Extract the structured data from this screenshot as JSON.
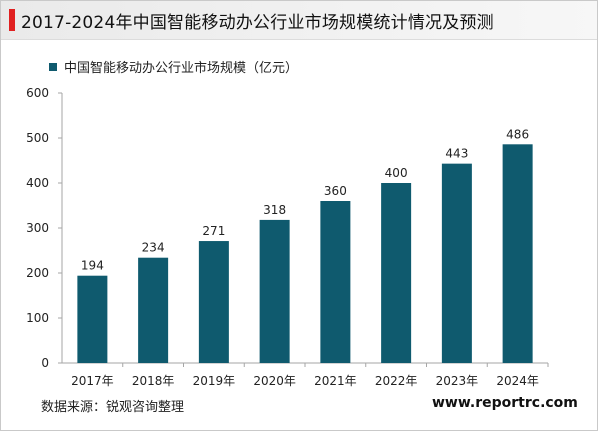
{
  "header": {
    "title": "2017-2024年中国智能移动办公行业市场规模统计情况及预测"
  },
  "footer": {
    "source": "数据来源：锐观咨询整理",
    "website": "www.reportrc.com"
  },
  "colors": {
    "accent": "#e02020",
    "bar": "#0f5a6e"
  },
  "chart_data": {
    "type": "bar",
    "title": "2017-2024年中国智能移动办公行业市场规模统计情况及预测",
    "categories": [
      "2017年",
      "2018年",
      "2019年",
      "2020年",
      "2021年",
      "2022年",
      "2023年",
      "2024年"
    ],
    "series": [
      {
        "name": "中国智能移动办公行业市场规模（亿元）",
        "values": [
          194,
          234,
          271,
          318,
          360,
          400,
          443,
          486
        ]
      }
    ],
    "yticks": [
      "0",
      "100",
      "200",
      "300",
      "400",
      "500",
      "600"
    ],
    "ylim": [
      0,
      600
    ],
    "grid": false,
    "legend": "top-left"
  }
}
